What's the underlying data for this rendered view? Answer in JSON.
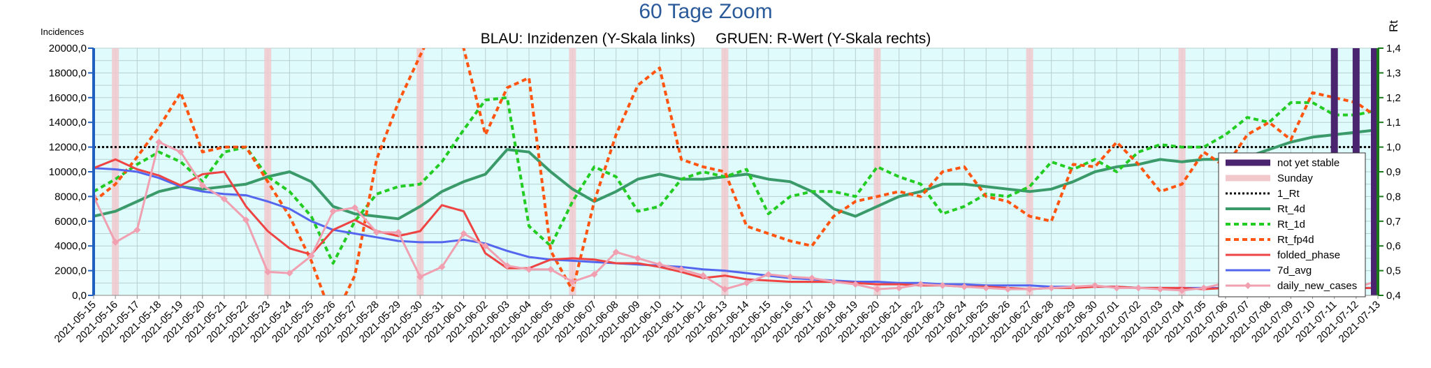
{
  "chart_data": {
    "type": "line",
    "title": "60 Tage Zoom",
    "subtitle": "BLAU: Inzidenzen (Y-Skala links)     GRUEN: R-Wert (Y-Skala rechts)",
    "ylabel_left": "Incidences",
    "ylabel_right": "Rt",
    "ylim_left": [
      0,
      20000
    ],
    "ylim_right": [
      0.4,
      1.4
    ],
    "yticks_left": [
      "0,0",
      "2000,0",
      "4000,0",
      "6000,0",
      "8000,0",
      "10000,0",
      "12000,0",
      "14000,0",
      "16000,0",
      "18000,0",
      "20000,0"
    ],
    "yticks_right": [
      "0,4",
      "0,5",
      "0,6",
      "0,7",
      "0,8",
      "0,9",
      "1,0",
      "1,1",
      "1,2",
      "1,3",
      "1,4"
    ],
    "grid": true,
    "legend_position": "right",
    "dates": [
      "2021-05-15",
      "2021-05-16",
      "2021-05-17",
      "2021-05-18",
      "2021-05-19",
      "2021-05-20",
      "2021-05-21",
      "2021-05-22",
      "2021-05-23",
      "2021-05-24",
      "2021-05-25",
      "2021-05-26",
      "2021-05-27",
      "2021-05-28",
      "2021-05-29",
      "2021-05-30",
      "2021-05-31",
      "2021-06-01",
      "2021-06-02",
      "2021-06-03",
      "2021-06-04",
      "2021-06-05",
      "2021-06-06",
      "2021-06-07",
      "2021-06-08",
      "2021-06-09",
      "2021-06-10",
      "2021-06-11",
      "2021-06-12",
      "2021-06-13",
      "2021-06-14",
      "2021-06-15",
      "2021-06-16",
      "2021-06-17",
      "2021-06-18",
      "2021-06-19",
      "2021-06-20",
      "2021-06-21",
      "2021-06-22",
      "2021-06-23",
      "2021-06-24",
      "2021-06-25",
      "2021-06-26",
      "2021-06-27",
      "2021-06-28",
      "2021-06-29",
      "2021-06-30",
      "2021-07-01",
      "2021-07-02",
      "2021-07-03",
      "2021-07-04",
      "2021-07-05",
      "2021-07-06",
      "2021-07-07",
      "2021-07-08",
      "2021-07-09",
      "2021-07-10",
      "2021-07-11",
      "2021-07-12",
      "2021-07-13"
    ],
    "sundays": [
      "2021-05-16",
      "2021-05-23",
      "2021-05-30",
      "2021-06-06",
      "2021-06-13",
      "2021-06-20",
      "2021-06-27",
      "2021-07-04"
    ],
    "not_yet_stable": [
      "2021-07-11",
      "2021-07-12",
      "2021-07-13"
    ],
    "rt_reference": 1.0,
    "series": [
      {
        "name": "Rt_4d",
        "axis": "right",
        "color": "#3a9a6a",
        "style": "solid",
        "width": 4,
        "values": [
          0.72,
          0.74,
          0.78,
          0.82,
          0.84,
          0.83,
          0.84,
          0.85,
          0.88,
          0.9,
          0.86,
          0.76,
          0.73,
          0.72,
          0.71,
          0.76,
          0.82,
          0.86,
          0.89,
          0.99,
          0.98,
          0.9,
          0.83,
          0.78,
          0.82,
          0.87,
          0.89,
          0.87,
          0.87,
          0.88,
          0.89,
          0.87,
          0.86,
          0.82,
          0.75,
          0.72,
          0.76,
          0.8,
          0.82,
          0.85,
          0.85,
          0.84,
          0.83,
          0.82,
          0.83,
          0.86,
          0.9,
          0.92,
          0.93,
          0.95,
          0.94,
          0.95,
          0.95,
          0.96,
          0.99,
          1.02,
          1.04,
          1.05,
          1.06,
          1.07
        ]
      },
      {
        "name": "Rt_1d",
        "axis": "right",
        "color": "#22cc22",
        "style": "dashed",
        "width": 4,
        "values": [
          0.82,
          0.87,
          0.93,
          0.98,
          0.94,
          0.86,
          0.98,
          1.0,
          0.88,
          0.82,
          0.72,
          0.53,
          0.7,
          0.81,
          0.84,
          0.85,
          0.94,
          1.07,
          1.19,
          1.2,
          0.68,
          0.6,
          0.78,
          0.92,
          0.88,
          0.74,
          0.76,
          0.87,
          0.9,
          0.88,
          0.91,
          0.73,
          0.8,
          0.82,
          0.82,
          0.8,
          0.92,
          0.88,
          0.85,
          0.73,
          0.76,
          0.81,
          0.8,
          0.84,
          0.94,
          0.91,
          0.95,
          0.9,
          0.98,
          1.01,
          1.0,
          1.0,
          1.05,
          1.12,
          1.1,
          1.18,
          1.18,
          1.13,
          1.13,
          1.15
        ]
      },
      {
        "name": "Rt_fp4d",
        "axis": "right",
        "color": "#ff5511",
        "style": "dashed",
        "width": 4,
        "values": [
          0.78,
          0.85,
          0.96,
          1.08,
          1.22,
          0.98,
          1.0,
          1.0,
          0.86,
          0.72,
          0.54,
          0.3,
          0.48,
          0.95,
          1.18,
          1.37,
          1.55,
          1.4,
          1.05,
          1.24,
          1.28,
          0.58,
          0.42,
          0.78,
          1.05,
          1.25,
          1.32,
          0.95,
          0.92,
          0.9,
          0.68,
          0.65,
          0.62,
          0.6,
          0.72,
          0.78,
          0.8,
          0.82,
          0.8,
          0.9,
          0.92,
          0.8,
          0.78,
          0.72,
          0.7,
          0.93,
          0.92,
          1.02,
          0.93,
          0.82,
          0.85,
          0.98,
          0.92,
          1.05,
          1.1,
          1.03,
          1.22,
          1.2,
          1.18,
          1.12
        ]
      },
      {
        "name": "folded_phase",
        "axis": "left",
        "color": "#ee4444",
        "style": "solid",
        "width": 3,
        "values": [
          10300,
          11000,
          10200,
          9700,
          8900,
          9800,
          10000,
          7200,
          5200,
          3800,
          3300,
          5300,
          6100,
          5200,
          4800,
          5200,
          7300,
          6800,
          3400,
          2200,
          2200,
          2900,
          3000,
          2900,
          2600,
          2600,
          2300,
          1900,
          1400,
          1600,
          1300,
          1200,
          1100,
          1100,
          1100,
          1000,
          900,
          900,
          800,
          800,
          700,
          700,
          600,
          500,
          600,
          600,
          700,
          700,
          600,
          600,
          600,
          500,
          600,
          700,
          700,
          700,
          700,
          600,
          600,
          600
        ]
      },
      {
        "name": "7d_avg",
        "axis": "left",
        "color": "#5566ee",
        "style": "solid",
        "width": 3,
        "values": [
          10300,
          10200,
          10000,
          9500,
          8800,
          8400,
          8200,
          8100,
          7600,
          7000,
          6000,
          5300,
          5000,
          4700,
          4400,
          4300,
          4300,
          4500,
          4200,
          3600,
          3100,
          2900,
          2800,
          2700,
          2600,
          2500,
          2400,
          2300,
          2100,
          2000,
          1800,
          1600,
          1400,
          1300,
          1200,
          1100,
          1100,
          1000,
          1000,
          900,
          900,
          800,
          800,
          800,
          700,
          700,
          700,
          700,
          600,
          600,
          600,
          600,
          600,
          600,
          600,
          600,
          600,
          600,
          600,
          600
        ]
      },
      {
        "name": "daily_new_cases",
        "axis": "left",
        "color": "#f0a0b0",
        "style": "solid",
        "width": 3,
        "marker": "diamond",
        "values": [
          8000,
          4300,
          5300,
          12400,
          11600,
          8900,
          7800,
          6100,
          1900,
          1800,
          3200,
          6800,
          7100,
          5100,
          5100,
          1500,
          2300,
          5000,
          4000,
          2400,
          2100,
          2100,
          1100,
          1700,
          3500,
          3000,
          2500,
          2100,
          1600,
          500,
          1000,
          1700,
          1500,
          1400,
          1100,
          900,
          500,
          600,
          900,
          800,
          700,
          600,
          500,
          500,
          600,
          700,
          800,
          600,
          600,
          500,
          400,
          600,
          1000,
          900,
          900,
          900,
          700,
          200,
          600,
          1200
        ]
      }
    ]
  },
  "legend": {
    "items": [
      {
        "label": "not yet stable",
        "color": "#4b2470",
        "kind": "bar"
      },
      {
        "label": "Sunday",
        "color": "#f2c8cc",
        "kind": "bar"
      },
      {
        "label": "1_Rt",
        "color": "#000000",
        "kind": "dotted"
      },
      {
        "label": "Rt_4d",
        "color": "#3a9a6a",
        "kind": "solid"
      },
      {
        "label": "Rt_1d",
        "color": "#22cc22",
        "kind": "dashed"
      },
      {
        "label": "Rt_fp4d",
        "color": "#ff5511",
        "kind": "dashed"
      },
      {
        "label": "folded_phase",
        "color": "#ee4444",
        "kind": "thin"
      },
      {
        "label": "7d_avg",
        "color": "#5566ee",
        "kind": "thin"
      },
      {
        "label": "daily_new_cases",
        "color": "#f0a0b0",
        "kind": "marker"
      }
    ]
  },
  "colors": {
    "plot_bg": "#dffbfb",
    "grid": "#b8cfcf",
    "title": "#2a5a9a",
    "left_axis": "#1f5fbf",
    "right_axis": "#1a7a1a"
  }
}
